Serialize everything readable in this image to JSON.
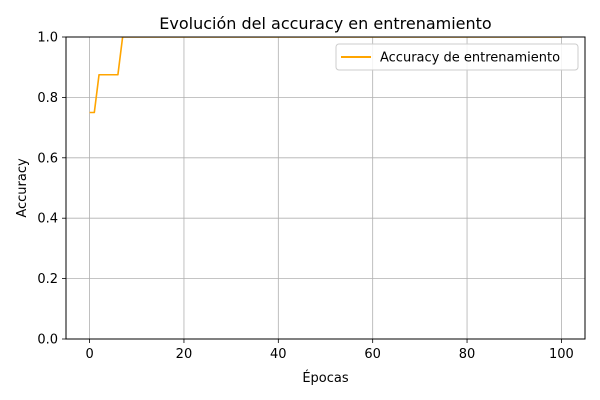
{
  "chart_data": {
    "type": "line",
    "title": "Evolución del accuracy en entrenamiento",
    "xlabel": "Épocas",
    "ylabel": "Accuracy",
    "xlim": [
      -5,
      105
    ],
    "ylim": [
      0.0,
      1.0
    ],
    "xticks": [
      0,
      20,
      40,
      60,
      80,
      100
    ],
    "xtick_labels": [
      "0",
      "20",
      "40",
      "60",
      "80",
      "100"
    ],
    "yticks": [
      0.0,
      0.2,
      0.4,
      0.6,
      0.8,
      1.0
    ],
    "ytick_labels": [
      "0.0",
      "0.2",
      "0.4",
      "0.6",
      "0.8",
      "1.0"
    ],
    "grid": true,
    "legend_position": "top-right",
    "series": [
      {
        "name": "Accuracy de entrenamiento",
        "color": "#ffa500",
        "x": [
          0,
          1,
          2,
          3,
          4,
          5,
          6,
          7,
          8,
          9,
          10,
          11,
          12,
          13,
          14,
          15,
          16,
          17,
          18,
          19,
          20,
          21,
          22,
          23,
          24,
          25,
          26,
          27,
          28,
          29,
          30,
          31,
          32,
          33,
          34,
          35,
          36,
          37,
          38,
          39,
          40,
          41,
          42,
          43,
          44,
          45,
          46,
          47,
          48,
          49,
          50,
          51,
          52,
          53,
          54,
          55,
          56,
          57,
          58,
          59,
          60,
          61,
          62,
          63,
          64,
          65,
          66,
          67,
          68,
          69,
          70,
          71,
          72,
          73,
          74,
          75,
          76,
          77,
          78,
          79,
          80,
          81,
          82,
          83,
          84,
          85,
          86,
          87,
          88,
          89,
          90,
          91,
          92,
          93,
          94,
          95,
          96,
          97,
          98,
          99,
          100
        ],
        "y": [
          0.75,
          0.75,
          0.875,
          0.875,
          0.875,
          0.875,
          0.875,
          1.0,
          1.0,
          1.0,
          1.0,
          1.0,
          1.0,
          1.0,
          1.0,
          1.0,
          1.0,
          1.0,
          1.0,
          1.0,
          1.0,
          1.0,
          1.0,
          1.0,
          1.0,
          1.0,
          1.0,
          1.0,
          1.0,
          1.0,
          1.0,
          1.0,
          1.0,
          1.0,
          1.0,
          1.0,
          1.0,
          1.0,
          1.0,
          1.0,
          1.0,
          1.0,
          1.0,
          1.0,
          1.0,
          1.0,
          1.0,
          1.0,
          1.0,
          1.0,
          1.0,
          1.0,
          1.0,
          1.0,
          1.0,
          1.0,
          1.0,
          1.0,
          1.0,
          1.0,
          1.0,
          1.0,
          1.0,
          1.0,
          1.0,
          1.0,
          1.0,
          1.0,
          1.0,
          1.0,
          1.0,
          1.0,
          1.0,
          1.0,
          1.0,
          1.0,
          1.0,
          1.0,
          1.0,
          1.0,
          1.0,
          1.0,
          1.0,
          1.0,
          1.0,
          1.0,
          1.0,
          1.0,
          1.0,
          1.0,
          1.0,
          1.0,
          1.0,
          1.0,
          1.0,
          1.0,
          1.0,
          1.0,
          1.0,
          1.0,
          1.0
        ]
      }
    ]
  },
  "colors": {
    "grid": "#b0b0b0",
    "axes": "#000000",
    "legend_border": "#cccccc"
  }
}
